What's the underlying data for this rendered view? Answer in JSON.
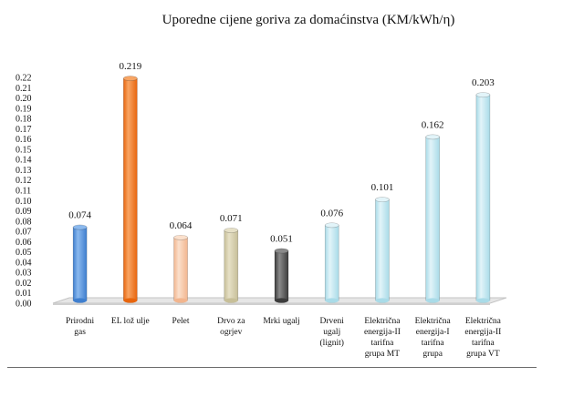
{
  "chart_data": {
    "type": "bar",
    "title": "Uporedne cijene goriva za domaćinstva (KM/kWh/η)",
    "xlabel": "",
    "ylabel": "",
    "ylim": [
      0,
      0.22
    ],
    "yticks": [
      "0.00",
      "0.01",
      "0.02",
      "0.03",
      "0.04",
      "0.05",
      "0.06",
      "0.07",
      "0.08",
      "0.09",
      "0.10",
      "0.11",
      "0.12",
      "0.13",
      "0.14",
      "0.15",
      "0.16",
      "0.17",
      "0.18",
      "0.19",
      "0.20",
      "0.21",
      "0.22"
    ],
    "grid": false,
    "legend": "none",
    "categories": [
      [
        "Prirodni",
        "gas"
      ],
      [
        "EL lož ulje"
      ],
      [
        "Pelet"
      ],
      [
        "Drvo za",
        "ogrjev"
      ],
      [
        "Mrki ugalj"
      ],
      [
        "Drveni",
        "ugalj",
        "(lignit)"
      ],
      [
        "Električna",
        "energija-II",
        "tarifna",
        "grupa MT"
      ],
      [
        "Električna",
        "energija-I",
        "tarifna",
        "grupa"
      ],
      [
        "Električna",
        "energija-II",
        "tarifna",
        "grupa VT"
      ]
    ],
    "values": [
      0.074,
      0.219,
      0.064,
      0.071,
      0.051,
      0.076,
      0.101,
      0.162,
      0.203
    ],
    "data_labels": [
      "0.074",
      "0.219",
      "0.064",
      "0.071",
      "0.051",
      "0.076",
      "0.101",
      "0.162",
      "0.203"
    ],
    "bar_colors": [
      "#3f7fcf",
      "#e8650d",
      "#f2b58e",
      "#c7bf98",
      "#3c3c3c",
      "#a9dbe8",
      "#a9dbe8",
      "#a9dbe8",
      "#a9dbe8"
    ],
    "bar_highlights": [
      "#8bb9ee",
      "#f8a564",
      "#fbe0cc",
      "#e6e0c6",
      "#8a8a8a",
      "#e2f4f9",
      "#e2f4f9",
      "#e2f4f9",
      "#e2f4f9"
    ]
  }
}
